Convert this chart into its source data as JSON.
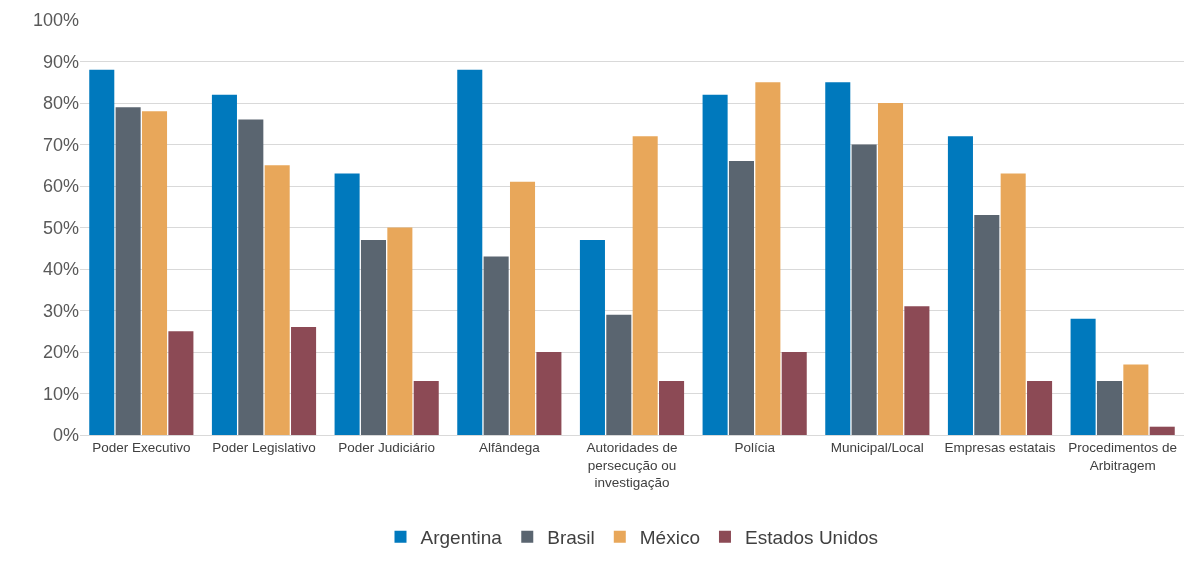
{
  "chart_data": {
    "type": "bar",
    "categories": [
      "Poder Executivo",
      "Poder Legislativo",
      "Poder Judiciário",
      "Alfândega",
      "Autoridades de persecução ou investigação",
      "Polícia",
      "Municipal/Local",
      "Empresas estatais",
      "Procedimentos de Arbitragem"
    ],
    "series": [
      {
        "name": "Argentina",
        "color": "#0079bd",
        "values": [
          88,
          82,
          63,
          88,
          47,
          82,
          85,
          72,
          28
        ]
      },
      {
        "name": "Brasil",
        "color": "#5a6570",
        "values": [
          79,
          76,
          47,
          43,
          29,
          66,
          70,
          53,
          13
        ]
      },
      {
        "name": "México",
        "color": "#e8a75a",
        "values": [
          78,
          65,
          50,
          61,
          72,
          85,
          80,
          63,
          17
        ]
      },
      {
        "name": "Estados Unidos",
        "color": "#8c4a55",
        "values": [
          25,
          26,
          13,
          20,
          13,
          20,
          31,
          13,
          2
        ]
      }
    ],
    "ylim": [
      0,
      100
    ],
    "yticks": [
      {
        "value": 0,
        "label": "0%"
      },
      {
        "value": 10,
        "label": "10%"
      },
      {
        "value": 20,
        "label": "20%"
      },
      {
        "value": 30,
        "label": "30%"
      },
      {
        "value": 40,
        "label": "40%"
      },
      {
        "value": 50,
        "label": "50%"
      },
      {
        "value": 60,
        "label": "60%"
      },
      {
        "value": 70,
        "label": "70%"
      },
      {
        "value": 80,
        "label": "80%"
      },
      {
        "value": 90,
        "label": "90%"
      },
      {
        "value": 100,
        "label": "100%"
      }
    ],
    "grid": "y",
    "legend": "bottom"
  }
}
